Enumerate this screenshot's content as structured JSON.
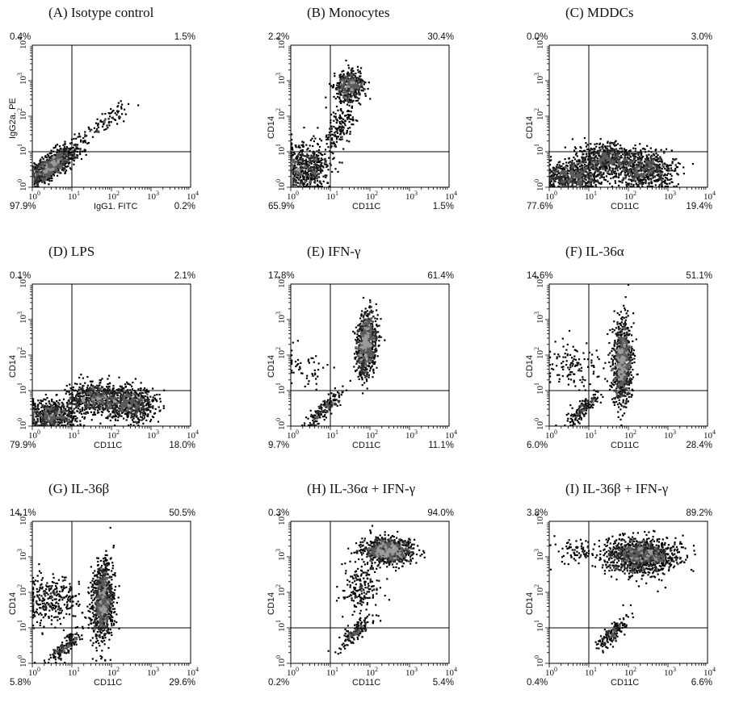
{
  "figure": {
    "tick_exponents": [
      "0",
      "1",
      "2",
      "3",
      "4"
    ],
    "panels": [
      {
        "id": "A",
        "title": "(A) Isotype control",
        "xlabel": "IgG1. FITC",
        "ylabel": "IgG2a. PE",
        "quadrants": {
          "ul": "0.4%",
          "ur": "1.5%",
          "ll": "97.9%",
          "lr": "0.2%"
        }
      },
      {
        "id": "B",
        "title": "(B) Monocytes",
        "xlabel": "CD11C",
        "ylabel": "CD14",
        "quadrants": {
          "ul": "2.2%",
          "ur": "30.4%",
          "ll": "65.9%",
          "lr": "1.5%"
        }
      },
      {
        "id": "C",
        "title": "(C) MDDCs",
        "xlabel": "CD11C",
        "ylabel": "CD14",
        "quadrants": {
          "ul": "0.0%",
          "ur": "3.0%",
          "ll": "77.6%",
          "lr": "19.4%"
        }
      },
      {
        "id": "D",
        "title": "(D) LPS",
        "xlabel": "CD11C",
        "ylabel": "CD14",
        "quadrants": {
          "ul": "0.1%",
          "ur": "2.1%",
          "ll": "79.9%",
          "lr": "18.0%"
        }
      },
      {
        "id": "E",
        "title": "(E) IFN-γ",
        "xlabel": "CD11C",
        "ylabel": "CD14",
        "quadrants": {
          "ul": "17.8%",
          "ur": "61.4%",
          "ll": "9.7%",
          "lr": "11.1%"
        }
      },
      {
        "id": "F",
        "title": "(F) IL-36α",
        "xlabel": "CD11C",
        "ylabel": "CD14",
        "quadrants": {
          "ul": "14.6%",
          "ur": "51.1%",
          "ll": "6.0%",
          "lr": "28.4%"
        }
      },
      {
        "id": "G",
        "title": "(G) IL-36β",
        "xlabel": "CD11C",
        "ylabel": "CD14",
        "quadrants": {
          "ul": "14.1%",
          "ur": "50.5%",
          "ll": "5.8%",
          "lr": "29.6%"
        }
      },
      {
        "id": "H",
        "title": "(H) IL-36α + IFN-γ",
        "xlabel": "CD11C",
        "ylabel": "CD14",
        "quadrants": {
          "ul": "0.3%",
          "ur": "94.0%",
          "ll": "0.2%",
          "lr": "5.4%"
        }
      },
      {
        "id": "I",
        "title": "(I) IL-36β + IFN-γ",
        "xlabel": "CD11C",
        "ylabel": "CD14",
        "quadrants": {
          "ul": "3.8%",
          "ur": "89.2%",
          "ll": "0.4%",
          "lr": "6.6%"
        }
      }
    ]
  },
  "chart_data": [
    {
      "type": "scatter",
      "panel": "A",
      "xscale": "log",
      "yscale": "log",
      "xlim": [
        1,
        10000
      ],
      "ylim": [
        1,
        10000
      ],
      "gates": {
        "x": 10,
        "y": 10
      },
      "quadrant_percent": {
        "upper_left": 0.4,
        "upper_right": 1.5,
        "lower_left": 97.9,
        "lower_right": 0.2
      },
      "populations": [
        {
          "x": 3,
          "y": 4,
          "sx": 0.35,
          "sy": 0.3,
          "rho": 0.8,
          "n": 900
        },
        {
          "x": 70,
          "y": 70,
          "sx": 0.3,
          "sy": 0.25,
          "rho": 0.85,
          "n": 90
        }
      ]
    },
    {
      "type": "scatter",
      "panel": "B",
      "xscale": "log",
      "yscale": "log",
      "xlim": [
        1,
        10000
      ],
      "ylim": [
        1,
        10000
      ],
      "gates": {
        "x": 10,
        "y": 10
      },
      "quadrant_percent": {
        "upper_left": 2.2,
        "upper_right": 30.4,
        "lower_left": 65.9,
        "lower_right": 1.5
      },
      "populations": [
        {
          "x": 30,
          "y": 700,
          "sx": 0.18,
          "sy": 0.2,
          "rho": 0.1,
          "n": 450
        },
        {
          "x": 2,
          "y": 3,
          "sx": 0.35,
          "sy": 0.35,
          "rho": 0.2,
          "n": 700
        },
        {
          "x": 18,
          "y": 60,
          "sx": 0.2,
          "sy": 0.35,
          "rho": 0.5,
          "n": 160
        }
      ]
    },
    {
      "type": "scatter",
      "panel": "C",
      "xscale": "log",
      "yscale": "log",
      "xlim": [
        1,
        10000
      ],
      "ylim": [
        1,
        10000
      ],
      "gates": {
        "x": 10,
        "y": 10
      },
      "quadrant_percent": {
        "upper_left": 0.0,
        "upper_right": 3.0,
        "lower_left": 77.6,
        "lower_right": 19.4
      },
      "populations": [
        {
          "x": 4,
          "y": 2,
          "sx": 0.35,
          "sy": 0.2,
          "rho": 0,
          "n": 600
        },
        {
          "x": 30,
          "y": 6,
          "sx": 0.4,
          "sy": 0.22,
          "rho": 0,
          "n": 700
        },
        {
          "x": 300,
          "y": 3,
          "sx": 0.35,
          "sy": 0.25,
          "rho": 0,
          "n": 600
        }
      ]
    },
    {
      "type": "scatter",
      "panel": "D",
      "xscale": "log",
      "yscale": "log",
      "xlim": [
        1,
        10000
      ],
      "ylim": [
        1,
        10000
      ],
      "gates": {
        "x": 10,
        "y": 10
      },
      "quadrant_percent": {
        "upper_left": 0.1,
        "upper_right": 2.1,
        "lower_left": 79.9,
        "lower_right": 18.0
      },
      "populations": [
        {
          "x": 3,
          "y": 2,
          "sx": 0.35,
          "sy": 0.2,
          "rho": 0,
          "n": 600
        },
        {
          "x": 40,
          "y": 6,
          "sx": 0.4,
          "sy": 0.22,
          "rho": 0,
          "n": 700
        },
        {
          "x": 300,
          "y": 4,
          "sx": 0.3,
          "sy": 0.25,
          "rho": 0,
          "n": 600
        }
      ]
    },
    {
      "type": "scatter",
      "panel": "E",
      "xscale": "log",
      "yscale": "log",
      "xlim": [
        1,
        10000
      ],
      "ylim": [
        1,
        10000
      ],
      "gates": {
        "x": 10,
        "y": 10
      },
      "quadrant_percent": {
        "upper_left": 17.8,
        "upper_right": 61.4,
        "lower_left": 9.7,
        "lower_right": 11.1
      },
      "populations": [
        {
          "x": 80,
          "y": 200,
          "sx": 0.12,
          "sy": 0.45,
          "rho": 0.2,
          "n": 900
        },
        {
          "x": 7,
          "y": 3,
          "sx": 0.22,
          "sy": 0.25,
          "rho": 0.85,
          "n": 180
        },
        {
          "x": 2,
          "y": 40,
          "sx": 0.3,
          "sy": 0.3,
          "rho": 0,
          "n": 50
        }
      ]
    },
    {
      "type": "scatter",
      "panel": "F",
      "xscale": "log",
      "yscale": "log",
      "xlim": [
        1,
        10000
      ],
      "ylim": [
        1,
        10000
      ],
      "gates": {
        "x": 10,
        "y": 10
      },
      "quadrant_percent": {
        "upper_left": 14.6,
        "upper_right": 51.1,
        "lower_left": 6.0,
        "lower_right": 28.4
      },
      "populations": [
        {
          "x": 70,
          "y": 60,
          "sx": 0.12,
          "sy": 0.55,
          "rho": 0.1,
          "n": 1000
        },
        {
          "x": 7,
          "y": 3,
          "sx": 0.22,
          "sy": 0.25,
          "rho": 0.85,
          "n": 160
        },
        {
          "x": 4,
          "y": 50,
          "sx": 0.35,
          "sy": 0.35,
          "rho": 0,
          "n": 120
        }
      ]
    },
    {
      "type": "scatter",
      "panel": "G",
      "xscale": "log",
      "yscale": "log",
      "xlim": [
        1,
        10000
      ],
      "ylim": [
        1,
        10000
      ],
      "gates": {
        "x": 10,
        "y": 10
      },
      "quadrant_percent": {
        "upper_left": 14.1,
        "upper_right": 50.5,
        "lower_left": 5.8,
        "lower_right": 29.6
      },
      "populations": [
        {
          "x": 60,
          "y": 50,
          "sx": 0.13,
          "sy": 0.55,
          "rho": 0.1,
          "n": 1000
        },
        {
          "x": 7,
          "y": 3,
          "sx": 0.22,
          "sy": 0.25,
          "rho": 0.85,
          "n": 160
        },
        {
          "x": 3,
          "y": 60,
          "sx": 0.35,
          "sy": 0.35,
          "rho": 0,
          "n": 300
        }
      ]
    },
    {
      "type": "scatter",
      "panel": "H",
      "xscale": "log",
      "yscale": "log",
      "xlim": [
        1,
        10000
      ],
      "ylim": [
        1,
        10000
      ],
      "gates": {
        "x": 10,
        "y": 10
      },
      "quadrant_percent": {
        "upper_left": 0.3,
        "upper_right": 94.0,
        "lower_left": 0.2,
        "lower_right": 5.4
      },
      "populations": [
        {
          "x": 300,
          "y": 1500,
          "sx": 0.3,
          "sy": 0.18,
          "rho": 0,
          "n": 1000
        },
        {
          "x": 60,
          "y": 150,
          "sx": 0.25,
          "sy": 0.4,
          "rho": 0.3,
          "n": 200
        },
        {
          "x": 40,
          "y": 7,
          "sx": 0.22,
          "sy": 0.25,
          "rho": 0.85,
          "n": 160
        }
      ]
    },
    {
      "type": "scatter",
      "panel": "I",
      "xscale": "log",
      "yscale": "log",
      "xlim": [
        1,
        10000
      ],
      "ylim": [
        1,
        10000
      ],
      "gates": {
        "x": 10,
        "y": 10
      },
      "quadrant_percent": {
        "upper_left": 3.8,
        "upper_right": 89.2,
        "lower_left": 0.4,
        "lower_right": 6.6
      },
      "populations": [
        {
          "x": 200,
          "y": 1000,
          "sx": 0.45,
          "sy": 0.25,
          "rho": 0,
          "n": 1200
        },
        {
          "x": 40,
          "y": 7,
          "sx": 0.22,
          "sy": 0.25,
          "rho": 0.85,
          "n": 160
        },
        {
          "x": 5,
          "y": 1500,
          "sx": 0.35,
          "sy": 0.2,
          "rho": 0,
          "n": 80
        }
      ]
    }
  ]
}
